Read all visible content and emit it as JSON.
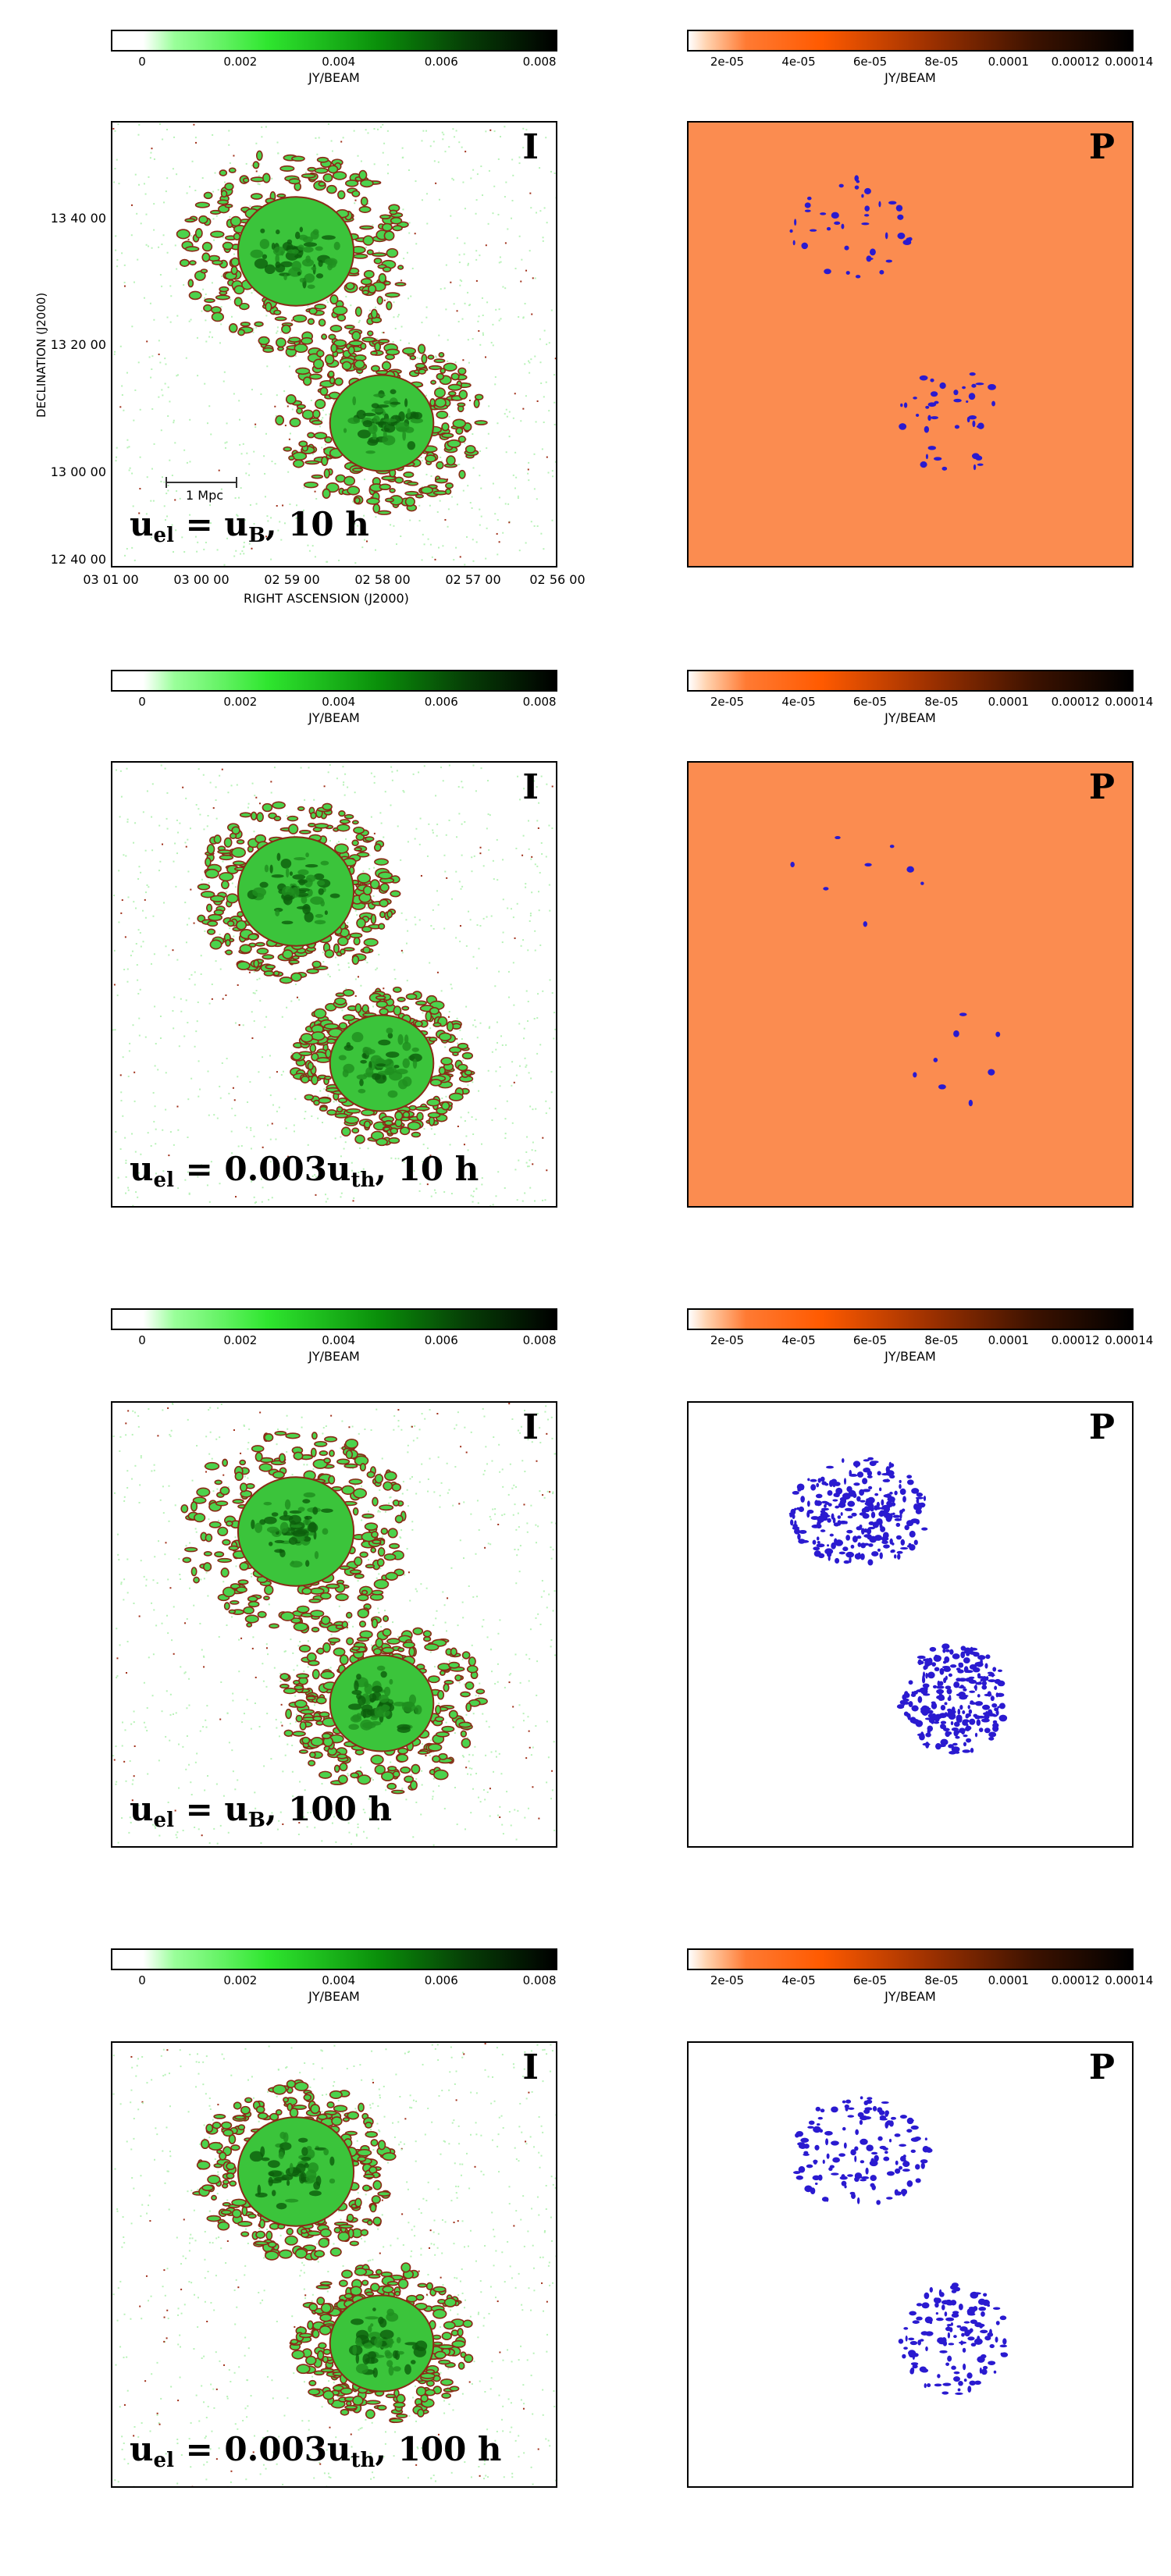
{
  "colorbar_intensity": {
    "ticks": [
      "0",
      "0.002",
      "0.004",
      "0.006",
      "0.008"
    ],
    "unit_label": "JY/BEAM",
    "colors": [
      "#ffffff",
      "#2fe62f",
      "#063d06",
      "#000000"
    ]
  },
  "colorbar_polarization": {
    "ticks": [
      "2e-05",
      "4e-05",
      "6e-05",
      "8e-05",
      "0.0001",
      "0.00012",
      "0.00014"
    ],
    "unit_label": "JY/BEAM",
    "colors": [
      "#ffffff",
      "#ff5a00",
      "#3c1200",
      "#000000"
    ]
  },
  "axes": {
    "ylabel": "DECLINATION  (J2000)",
    "xlabel": "RIGHT ASCENSION  (J2000)",
    "yticks": [
      "13 40 00",
      "13 20 00",
      "13 00 00",
      "12 40 00"
    ],
    "xticks": [
      "03 01 00",
      "03 00 00",
      "02 59 00",
      "02 58 00",
      "02 57 00",
      "02 56 00"
    ],
    "scalebar_label": "1 Mpc"
  },
  "panel_labels": {
    "intensity": "I",
    "polarization": "P"
  },
  "rows": [
    {
      "caption": {
        "pre": "u",
        "sub1": "el",
        "eq": " = u",
        "sub2": "B",
        "post": ",  10 h"
      }
    },
    {
      "caption": {
        "pre": "u",
        "sub1": "el",
        "eq": " = 0.003u",
        "sub2": "th",
        "post": ",  10 h"
      }
    },
    {
      "caption": {
        "pre": "u",
        "sub1": "el",
        "eq": " = u",
        "sub2": "B",
        "post": ",  100 h"
      }
    },
    {
      "caption": {
        "pre": "u",
        "sub1": "el",
        "eq": " = 0.003u",
        "sub2": "th",
        "post": ",  100 h"
      }
    }
  ]
}
